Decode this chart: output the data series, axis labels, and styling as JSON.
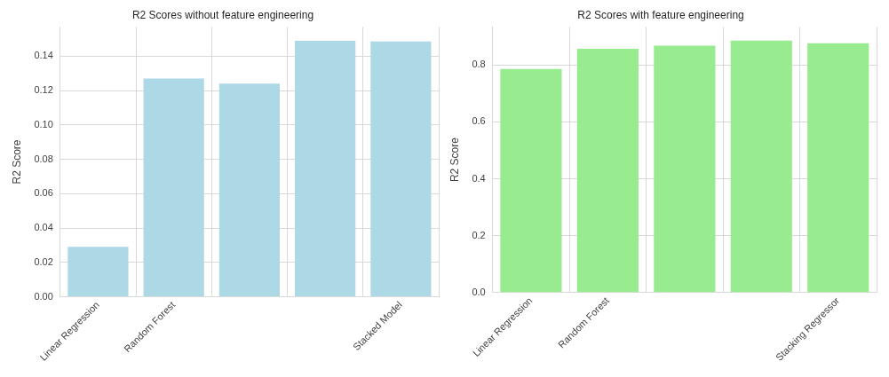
{
  "chart_data": [
    {
      "type": "bar",
      "title": "R2 Scores without feature engineering",
      "ylabel": "R2 Score",
      "categories": [
        "Linear Regression",
        "Random Forest",
        null,
        null,
        "Stacked Model"
      ],
      "values": [
        0.029,
        0.127,
        0.124,
        0.149,
        0.1485
      ],
      "color": "#add8e6",
      "ylim": [
        0,
        0.157
      ],
      "yticks": [
        {
          "value": 0,
          "label": "0.00"
        },
        {
          "value": 0.02,
          "label": "0.02"
        },
        {
          "value": 0.04,
          "label": "0.04"
        },
        {
          "value": 0.06,
          "label": "0.06"
        },
        {
          "value": 0.08,
          "label": "0.08"
        },
        {
          "value": 0.1,
          "label": "0.10"
        },
        {
          "value": 0.12,
          "label": "0.12"
        },
        {
          "value": 0.14,
          "label": "0.14"
        }
      ],
      "grid": true
    },
    {
      "type": "bar",
      "title": "R2 Scores with feature engineering",
      "ylabel": "R2 Score",
      "categories": [
        "Linear Regression",
        "Random Forest",
        null,
        null,
        "Stacking Regressor"
      ],
      "values": [
        0.786,
        0.857,
        0.868,
        0.886,
        0.877
      ],
      "color": "#98eb8f",
      "ylim": [
        0,
        0.934
      ],
      "yticks": [
        {
          "value": 0,
          "label": "0.0"
        },
        {
          "value": 0.2,
          "label": "0.2"
        },
        {
          "value": 0.4,
          "label": "0.4"
        },
        {
          "value": 0.6,
          "label": "0.6"
        },
        {
          "value": 0.8,
          "label": "0.8"
        }
      ],
      "grid": true
    }
  ]
}
